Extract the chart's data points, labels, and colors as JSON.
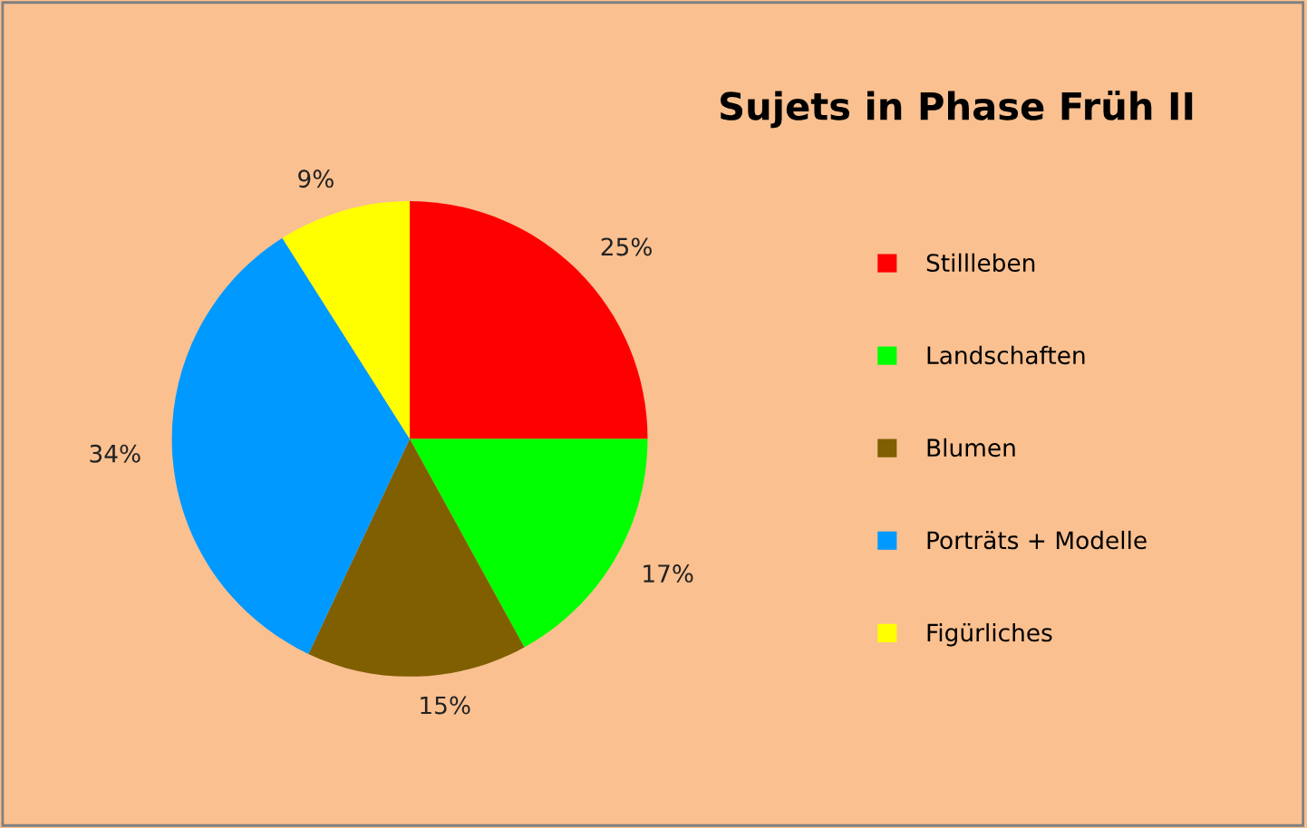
{
  "chart_data": {
    "type": "pie",
    "title": "Sujets in Phase Früh II",
    "categories": [
      "Stillleben",
      "Landschaften",
      "Blumen",
      "Porträts + Modelle",
      "Figürliches"
    ],
    "values": [
      25,
      17,
      15,
      34,
      9
    ],
    "colors": [
      "#ff0000",
      "#00ff00",
      "#7f5f00",
      "#0099ff",
      "#ffff00"
    ],
    "value_labels": [
      "25%",
      "17%",
      "15%",
      "34%",
      "9%"
    ],
    "legend": "right"
  }
}
